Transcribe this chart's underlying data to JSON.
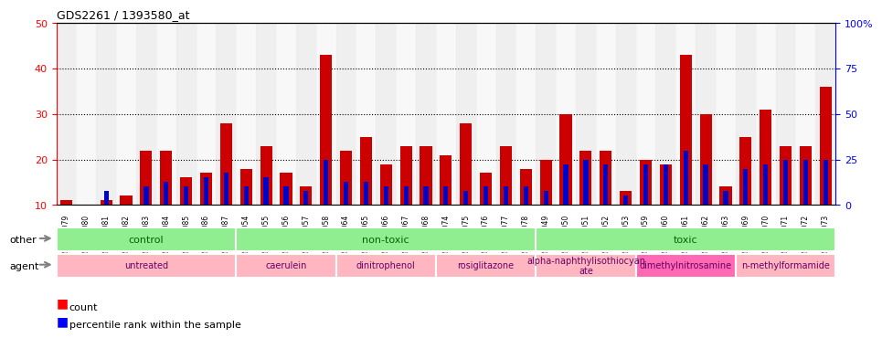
{
  "title": "GDS2261 / 1393580_at",
  "samples": [
    "GSM127079",
    "GSM127080",
    "GSM127081",
    "GSM127082",
    "GSM127083",
    "GSM127084",
    "GSM127085",
    "GSM127086",
    "GSM127087",
    "GSM127054",
    "GSM127055",
    "GSM127056",
    "GSM127057",
    "GSM127058",
    "GSM127064",
    "GSM127065",
    "GSM127066",
    "GSM127067",
    "GSM127068",
    "GSM127074",
    "GSM127075",
    "GSM127076",
    "GSM127077",
    "GSM127078",
    "GSM127049",
    "GSM127050",
    "GSM127051",
    "GSM127052",
    "GSM127053",
    "GSM127059",
    "GSM127060",
    "GSM127061",
    "GSM127062",
    "GSM127063",
    "GSM127069",
    "GSM127070",
    "GSM127071",
    "GSM127072",
    "GSM127073"
  ],
  "count": [
    11,
    10,
    11,
    12,
    22,
    22,
    16,
    17,
    28,
    18,
    23,
    17,
    14,
    43,
    22,
    25,
    19,
    23,
    23,
    21,
    28,
    17,
    23,
    18,
    20,
    30,
    22,
    22,
    13,
    20,
    19,
    43,
    30,
    14,
    25,
    31,
    23,
    23,
    36
  ],
  "percentile": [
    10,
    10,
    13,
    10,
    14,
    15,
    14,
    16,
    17,
    14,
    16,
    14,
    13,
    20,
    15,
    15,
    14,
    14,
    14,
    14,
    13,
    14,
    14,
    14,
    13,
    19,
    20,
    19,
    12,
    19,
    19,
    22,
    19,
    13,
    18,
    19,
    20,
    20,
    20
  ],
  "other_groups": [
    {
      "label": "control",
      "start": 0,
      "end": 8,
      "color": "#90EE90"
    },
    {
      "label": "non-toxic",
      "start": 9,
      "end": 23,
      "color": "#90EE90"
    },
    {
      "label": "toxic",
      "start": 24,
      "end": 38,
      "color": "#90EE90"
    }
  ],
  "agent_groups": [
    {
      "label": "untreated",
      "start": 0,
      "end": 8,
      "color": "#FFB6C1"
    },
    {
      "label": "caerulein",
      "start": 9,
      "end": 13,
      "color": "#FFB6C1"
    },
    {
      "label": "dinitrophenol",
      "start": 14,
      "end": 18,
      "color": "#FFB6C1"
    },
    {
      "label": "rosiglitazone",
      "start": 19,
      "end": 23,
      "color": "#FFB6C1"
    },
    {
      "label": "alpha-naphthylisothiocyan\nate",
      "start": 24,
      "end": 28,
      "color": "#FFB6C1"
    },
    {
      "label": "dimethylnitrosamine",
      "start": 29,
      "end": 33,
      "color": "#FF69B4"
    },
    {
      "label": "n-methylformamide",
      "start": 34,
      "end": 38,
      "color": "#FFB6C1"
    }
  ],
  "ylim_left": [
    10,
    50
  ],
  "ylim_right": [
    0,
    100
  ],
  "bar_color": "#CC0000",
  "percentile_color": "#0000CC",
  "bg_color": "#F0F0F0",
  "grid_color": "black",
  "left_yticks": [
    10,
    20,
    30,
    40,
    50
  ],
  "right_yticks": [
    0,
    25,
    50,
    75,
    100
  ]
}
